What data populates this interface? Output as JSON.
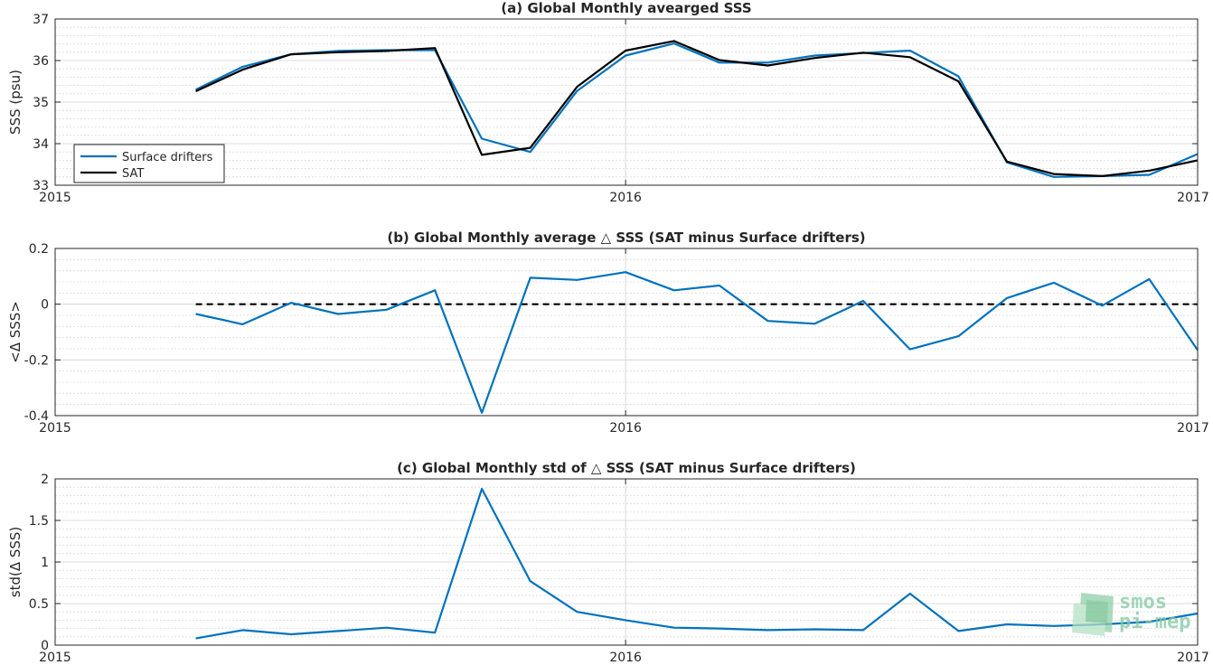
{
  "chart_data": [
    {
      "type": "line",
      "title": "(a) Global Monthly avearged SSS",
      "xlabel": "",
      "ylabel": "SSS (psu)",
      "xlim": [
        "2015-01-01",
        "2017-01-01"
      ],
      "ylim": [
        33,
        37
      ],
      "x_ticks": [
        "2015",
        "2016",
        "2017"
      ],
      "y_ticks": [
        "33",
        "34",
        "35",
        "36",
        "37"
      ],
      "grid": true,
      "legend_placement": "lower-left",
      "x": [
        "2015-04-01",
        "2015-05-01",
        "2015-06-01",
        "2015-07-01",
        "2015-08-01",
        "2015-09-01",
        "2015-10-01",
        "2015-11-01",
        "2015-12-01",
        "2016-01-01",
        "2016-02-01",
        "2016-03-01",
        "2016-04-01",
        "2016-05-01",
        "2016-06-01",
        "2016-07-01",
        "2016-08-01",
        "2016-09-01",
        "2016-10-01",
        "2016-11-01",
        "2016-12-01",
        "2017-01-01"
      ],
      "series": [
        {
          "name": "Surface drifters",
          "color": "#0072bd",
          "values": [
            35.3,
            35.85,
            36.15,
            36.23,
            36.25,
            36.25,
            34.12,
            33.8,
            35.27,
            36.12,
            36.41,
            35.95,
            35.95,
            36.12,
            36.18,
            36.24,
            35.62,
            33.55,
            33.2,
            33.22,
            33.25,
            33.75
          ]
        },
        {
          "name": "SAT",
          "color": "#000000",
          "values": [
            35.26,
            35.78,
            36.15,
            36.2,
            36.23,
            36.3,
            33.73,
            33.9,
            35.37,
            36.24,
            36.47,
            36.01,
            35.88,
            36.06,
            36.19,
            36.08,
            35.5,
            33.57,
            33.27,
            33.22,
            33.35,
            33.6
          ]
        }
      ]
    },
    {
      "type": "line",
      "title": "(b) Global Monthly average △ SSS (SAT minus Surface drifters)",
      "xlabel": "",
      "ylabel": "<Δ SSS>",
      "xlim": [
        "2015-01-01",
        "2017-01-01"
      ],
      "ylim": [
        -0.4,
        0.2
      ],
      "x_ticks": [
        "2015",
        "2016",
        "2017"
      ],
      "y_ticks": [
        "-0.4",
        "-0.2",
        "0",
        "0.2"
      ],
      "grid": true,
      "reference_line": {
        "value": 0,
        "style": "dashed",
        "color": "#000000",
        "from": "2015-04-01",
        "to": "2017-01-01"
      },
      "x": [
        "2015-04-01",
        "2015-05-01",
        "2015-06-01",
        "2015-07-01",
        "2015-08-01",
        "2015-09-01",
        "2015-10-01",
        "2015-11-01",
        "2015-12-01",
        "2016-01-01",
        "2016-02-01",
        "2016-03-01",
        "2016-04-01",
        "2016-05-01",
        "2016-06-01",
        "2016-07-01",
        "2016-08-01",
        "2016-09-01",
        "2016-10-01",
        "2016-11-01",
        "2016-12-01",
        "2017-01-01"
      ],
      "series": [
        {
          "color": "#0072bd",
          "values": [
            -0.035,
            -0.072,
            0.005,
            -0.035,
            -0.02,
            0.05,
            -0.39,
            0.095,
            0.087,
            0.115,
            0.05,
            0.067,
            -0.06,
            -0.07,
            0.012,
            -0.162,
            -0.115,
            0.022,
            0.077,
            -0.005,
            0.09,
            -0.165
          ]
        }
      ]
    },
    {
      "type": "line",
      "title": "(c) Global Monthly std of △ SSS (SAT minus Surface drifters)",
      "xlabel": "",
      "ylabel": "std(Δ SSS)",
      "xlim": [
        "2015-01-01",
        "2017-01-01"
      ],
      "ylim": [
        0,
        2
      ],
      "x_ticks": [
        "2015",
        "2016",
        "2017"
      ],
      "y_ticks": [
        "0",
        "0.5",
        "1",
        "1.5",
        "2"
      ],
      "grid": true,
      "x": [
        "2015-04-01",
        "2015-05-01",
        "2015-06-01",
        "2015-07-01",
        "2015-08-01",
        "2015-09-01",
        "2015-10-01",
        "2015-11-01",
        "2015-12-01",
        "2016-01-01",
        "2016-02-01",
        "2016-03-01",
        "2016-04-01",
        "2016-05-01",
        "2016-06-01",
        "2016-07-01",
        "2016-08-01",
        "2016-09-01",
        "2016-10-01",
        "2016-11-01",
        "2016-12-01",
        "2017-01-01"
      ],
      "series": [
        {
          "color": "#0072bd",
          "values": [
            0.08,
            0.18,
            0.13,
            0.17,
            0.21,
            0.15,
            1.88,
            0.77,
            0.4,
            0.3,
            0.21,
            0.2,
            0.18,
            0.19,
            0.18,
            0.62,
            0.17,
            0.25,
            0.23,
            0.25,
            0.28,
            0.38
          ]
        }
      ]
    }
  ],
  "watermark": {
    "line1": "smos",
    "line2": "pi-mep"
  }
}
